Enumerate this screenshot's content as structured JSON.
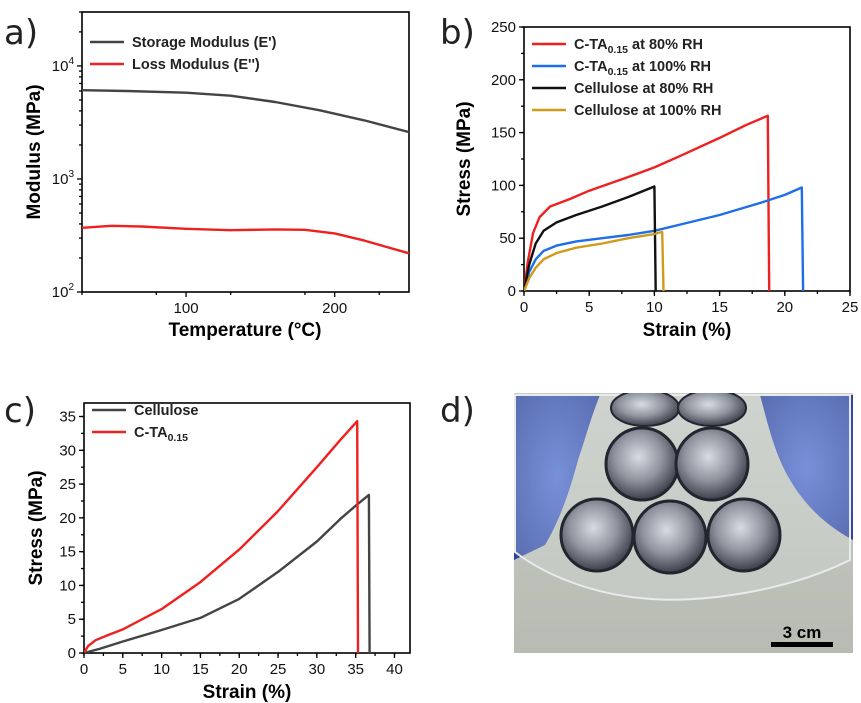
{
  "panel_labels": {
    "a": "a)",
    "b": "b)",
    "c": "c)",
    "d": "d)"
  },
  "chart_data": [
    {
      "panel": "a",
      "type": "line",
      "xlabel": "Temperature (°C)",
      "ylabel": "Modulus (MPa)",
      "xlim": [
        30,
        250
      ],
      "ylim": [
        100,
        30000
      ],
      "yscale": "log",
      "xticks": [
        100,
        200
      ],
      "yticks": [
        {
          "value": 100,
          "base": "10",
          "exp": "2"
        },
        {
          "value": 1000,
          "base": "10",
          "exp": "3"
        },
        {
          "value": 10000,
          "base": "10",
          "exp": "4"
        }
      ],
      "legend_position": "top-left",
      "series": [
        {
          "name": "Storage Modulus (E')",
          "color": "#444444",
          "points": [
            [
              30,
              6100
            ],
            [
              60,
              6000
            ],
            [
              100,
              5800
            ],
            [
              130,
              5450
            ],
            [
              160,
              4800
            ],
            [
              190,
              4050
            ],
            [
              220,
              3300
            ],
            [
              250,
              2600
            ]
          ]
        },
        {
          "name": "Loss Modulus (E'')",
          "color": "#ee2020",
          "points": [
            [
              30,
              370
            ],
            [
              50,
              385
            ],
            [
              70,
              380
            ],
            [
              100,
              362
            ],
            [
              130,
              352
            ],
            [
              160,
              358
            ],
            [
              180,
              355
            ],
            [
              200,
              330
            ],
            [
              220,
              285
            ],
            [
              235,
              250
            ],
            [
              250,
              220
            ]
          ]
        }
      ]
    },
    {
      "panel": "b",
      "type": "line",
      "xlabel": "Strain (%)",
      "ylabel": "Stress (MPa)",
      "xlim": [
        0,
        25
      ],
      "ylim": [
        0,
        250
      ],
      "xticks": [
        0,
        5,
        10,
        15,
        20,
        25
      ],
      "yticks": [
        0,
        50,
        100,
        150,
        200,
        250
      ],
      "legend_position": "top-left",
      "series": [
        {
          "name_main": "C-TA",
          "name_sub": "0.15",
          "name_rest": " at 80% RH",
          "color": "#ee2020",
          "points": [
            [
              0,
              0
            ],
            [
              0.3,
              28
            ],
            [
              0.7,
              55
            ],
            [
              1.2,
              70
            ],
            [
              2,
              80
            ],
            [
              3.5,
              87
            ],
            [
              5,
              95
            ],
            [
              8,
              108
            ],
            [
              10,
              117
            ],
            [
              12,
              128
            ],
            [
              15,
              145
            ],
            [
              17,
              157
            ],
            [
              18.7,
              166
            ],
            [
              18.8,
              0
            ]
          ]
        },
        {
          "name_main": "C-TA",
          "name_sub": "0.15",
          "name_rest": " at 100% RH",
          "color": "#1e6ee8",
          "points": [
            [
              0,
              0
            ],
            [
              0.4,
              18
            ],
            [
              0.9,
              30
            ],
            [
              1.5,
              38
            ],
            [
              2.5,
              43
            ],
            [
              4,
              47
            ],
            [
              6,
              50
            ],
            [
              8,
              53
            ],
            [
              10,
              57
            ],
            [
              12,
              63
            ],
            [
              15,
              72
            ],
            [
              18,
              83
            ],
            [
              20,
              91
            ],
            [
              21.3,
              98
            ],
            [
              21.4,
              0
            ]
          ]
        },
        {
          "name_main": "Cellulose at 80% RH",
          "name_sub": "",
          "name_rest": "",
          "color": "#111111",
          "points": [
            [
              0,
              0
            ],
            [
              0.4,
              25
            ],
            [
              0.9,
              45
            ],
            [
              1.5,
              57
            ],
            [
              2.5,
              65
            ],
            [
              4,
              72
            ],
            [
              6,
              80
            ],
            [
              8,
              89
            ],
            [
              10,
              99
            ],
            [
              10.1,
              0
            ]
          ]
        },
        {
          "name_main": "Cellulose at 100% RH",
          "name_sub": "",
          "name_rest": "",
          "color": "#d09a1a",
          "points": [
            [
              0,
              0
            ],
            [
              0.4,
              12
            ],
            [
              0.9,
              22
            ],
            [
              1.5,
              30
            ],
            [
              2.5,
              36
            ],
            [
              4,
              41
            ],
            [
              6,
              45
            ],
            [
              8,
              50
            ],
            [
              10,
              54
            ],
            [
              10.6,
              56
            ],
            [
              10.7,
              0
            ]
          ]
        }
      ]
    },
    {
      "panel": "c",
      "type": "line",
      "xlabel": "Strain (%)",
      "ylabel": "Stress (MPa)",
      "xlim": [
        0,
        42
      ],
      "ylim": [
        0,
        37
      ],
      "xticks": [
        0,
        5,
        10,
        15,
        20,
        25,
        30,
        35,
        40
      ],
      "yticks": [
        0,
        5,
        10,
        15,
        20,
        25,
        30,
        35
      ],
      "legend_position": "top-left",
      "series": [
        {
          "name_main": "Cellulose",
          "name_sub": "",
          "name_rest": "",
          "color": "#444444",
          "points": [
            [
              0,
              0
            ],
            [
              2,
              0.6
            ],
            [
              5,
              1.7
            ],
            [
              10,
              3.4
            ],
            [
              15,
              5.2
            ],
            [
              20,
              8
            ],
            [
              25,
              12
            ],
            [
              30,
              16.5
            ],
            [
              33,
              19.8
            ],
            [
              35,
              21.8
            ],
            [
              36.7,
              23.4
            ],
            [
              36.8,
              0
            ]
          ]
        },
        {
          "name_main": "C-TA",
          "name_sub": "0.15",
          "name_rest": "",
          "color": "#ee2020",
          "points": [
            [
              0,
              0
            ],
            [
              0.5,
              1
            ],
            [
              1.5,
              1.9
            ],
            [
              3,
              2.6
            ],
            [
              5,
              3.5
            ],
            [
              10,
              6.5
            ],
            [
              15,
              10.5
            ],
            [
              20,
              15.3
            ],
            [
              25,
              21
            ],
            [
              30,
              27.5
            ],
            [
              33,
              31.5
            ],
            [
              35.2,
              34.3
            ],
            [
              35.3,
              0
            ]
          ]
        }
      ]
    }
  ],
  "photo": {
    "scale_bar_label": "3 cm"
  }
}
